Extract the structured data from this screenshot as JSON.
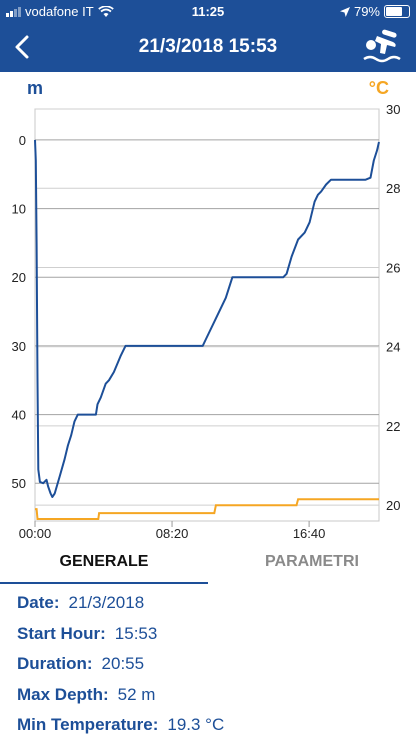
{
  "status_bar": {
    "carrier": "vodafone IT",
    "time": "11:25",
    "battery": "79%",
    "battery_level": 0.79
  },
  "nav": {
    "title": "21/3/2018 15:53",
    "back_icon": "chevron-left-icon",
    "action_icon": "scuba-diver-icon"
  },
  "chart_header": {
    "left_unit": "m",
    "right_unit": "°C"
  },
  "colors": {
    "primary": "#1d4f98",
    "depth_line": "#1d4f98",
    "temperature_line": "#f5a623"
  },
  "chart_data": {
    "type": "line",
    "x_ticks": [
      "00:00",
      "08:20",
      "16:40"
    ],
    "x_tick_minutes": [
      0,
      8.333,
      16.667
    ],
    "xlim_minutes": [
      0,
      20.917
    ],
    "ylim_depth": [
      55.5,
      -4.5
    ],
    "ylim_temperature": [
      19.6,
      30
    ],
    "y_ticks_depth": [
      0,
      10,
      20,
      30,
      40,
      50
    ],
    "y_ticks_temperature": [
      20,
      22,
      24,
      26,
      28,
      30
    ],
    "series": [
      {
        "axis": "depth",
        "points": [
          [
            0,
            0
          ],
          [
            0.05,
            3
          ],
          [
            0.1,
            15
          ],
          [
            0.15,
            35
          ],
          [
            0.2,
            48
          ],
          [
            0.3,
            49.8
          ],
          [
            0.5,
            50
          ],
          [
            0.7,
            49.5
          ],
          [
            0.8,
            50.5
          ],
          [
            0.95,
            51.5
          ],
          [
            1.05,
            52
          ],
          [
            1.2,
            51.5
          ],
          [
            1.5,
            49
          ],
          [
            1.8,
            46.5
          ],
          [
            2.0,
            44.5
          ],
          [
            2.2,
            43
          ],
          [
            2.4,
            41
          ],
          [
            2.6,
            40
          ],
          [
            2.9,
            40
          ],
          [
            3.4,
            40
          ],
          [
            3.7,
            40
          ],
          [
            3.8,
            38.5
          ],
          [
            4.0,
            37.5
          ],
          [
            4.3,
            35.5
          ],
          [
            4.5,
            35
          ],
          [
            4.8,
            33.8
          ],
          [
            5.2,
            31.5
          ],
          [
            5.5,
            30
          ],
          [
            6.0,
            30
          ],
          [
            7.0,
            30
          ],
          [
            8.0,
            30
          ],
          [
            9.0,
            30
          ],
          [
            10.2,
            30
          ],
          [
            10.4,
            29
          ],
          [
            11.0,
            26
          ],
          [
            11.6,
            23
          ],
          [
            12.0,
            20
          ],
          [
            13.0,
            20
          ],
          [
            14.0,
            20
          ],
          [
            15.1,
            20
          ],
          [
            15.3,
            19.5
          ],
          [
            15.6,
            17
          ],
          [
            16.0,
            14.5
          ],
          [
            16.4,
            13.5
          ],
          [
            16.7,
            12
          ],
          [
            17.0,
            9
          ],
          [
            17.2,
            8
          ],
          [
            17.4,
            7.5
          ],
          [
            17.7,
            6.5
          ],
          [
            18.0,
            5.8
          ],
          [
            19.0,
            5.8
          ],
          [
            20.1,
            5.8
          ],
          [
            20.4,
            5.5
          ],
          [
            20.6,
            3
          ],
          [
            20.8,
            1.5
          ],
          [
            20.917,
            0.3
          ]
        ]
      },
      {
        "axis": "temperature",
        "points": [
          [
            0,
            19.9
          ],
          [
            0.1,
            19.9
          ],
          [
            0.15,
            19.65
          ],
          [
            3.85,
            19.65
          ],
          [
            3.9,
            19.8
          ],
          [
            10.9,
            19.8
          ],
          [
            11.0,
            20.0
          ],
          [
            15.9,
            20.0
          ],
          [
            16.0,
            20.15
          ],
          [
            20.917,
            20.15
          ]
        ]
      }
    ]
  },
  "tabs": [
    {
      "label": "GENERALE",
      "active": true
    },
    {
      "label": "PARAMETRI",
      "active": false
    }
  ],
  "summary": [
    {
      "label": "Date:",
      "value": "21/3/2018"
    },
    {
      "label": "Start Hour:",
      "value": "15:53"
    },
    {
      "label": "Duration:",
      "value": "20:55"
    },
    {
      "label": "Max Depth:",
      "value": "52 m"
    },
    {
      "label": "Min Temperature:",
      "value": "19.3 °C"
    }
  ]
}
